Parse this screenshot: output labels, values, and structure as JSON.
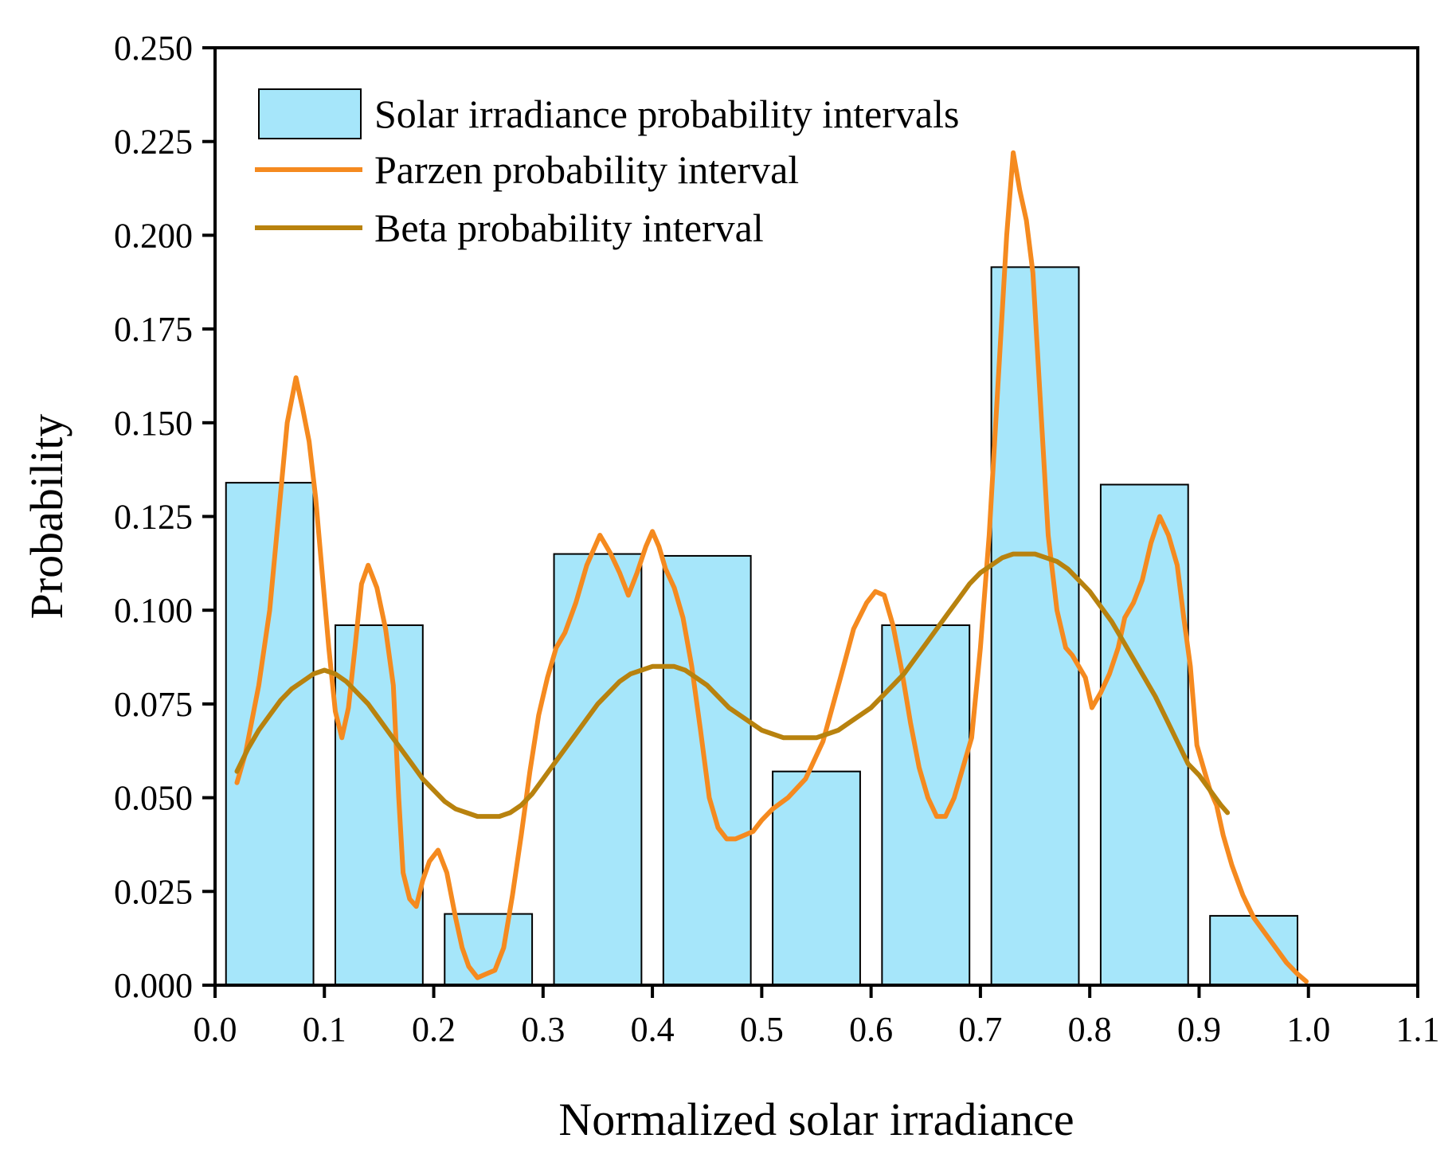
{
  "chart_data": {
    "type": "bar",
    "title": "",
    "xlabel": "Normalized solar irradiance",
    "ylabel": "Probability",
    "xlim": [
      0.0,
      1.1
    ],
    "ylim": [
      0.0,
      0.25
    ],
    "x_ticks": [
      "0.0",
      "0.1",
      "0.2",
      "0.3",
      "0.4",
      "0.5",
      "0.6",
      "0.7",
      "0.8",
      "0.9",
      "1.0",
      "1.1"
    ],
    "y_ticks": [
      "0.000",
      "0.025",
      "0.050",
      "0.075",
      "0.100",
      "0.125",
      "0.150",
      "0.175",
      "0.200",
      "0.225",
      "0.250"
    ],
    "grid": false,
    "legend_position": "top-left",
    "bars": {
      "name": "Solar irradiance probability intervals",
      "color": "#a6e6fa",
      "x_start": [
        0.01,
        0.11,
        0.21,
        0.31,
        0.41,
        0.51,
        0.61,
        0.71,
        0.81,
        0.91
      ],
      "x_end": [
        0.09,
        0.19,
        0.29,
        0.39,
        0.49,
        0.59,
        0.69,
        0.79,
        0.89,
        0.99
      ],
      "values": [
        0.134,
        0.096,
        0.019,
        0.115,
        0.1145,
        0.057,
        0.096,
        0.1915,
        0.1335,
        0.0185
      ]
    },
    "series": [
      {
        "name": "Parzen probability interval",
        "type": "line",
        "color": "#f58a1f",
        "x": [
          0.02,
          0.028,
          0.04,
          0.05,
          0.058,
          0.066,
          0.074,
          0.08,
          0.086,
          0.092,
          0.098,
          0.104,
          0.11,
          0.116,
          0.122,
          0.128,
          0.134,
          0.14,
          0.148,
          0.156,
          0.163,
          0.168,
          0.172,
          0.178,
          0.184,
          0.19,
          0.196,
          0.204,
          0.212,
          0.22,
          0.226,
          0.232,
          0.24,
          0.248,
          0.256,
          0.264,
          0.272,
          0.28,
          0.288,
          0.296,
          0.304,
          0.312,
          0.32,
          0.33,
          0.34,
          0.352,
          0.362,
          0.37,
          0.378,
          0.386,
          0.394,
          0.4,
          0.406,
          0.412,
          0.42,
          0.428,
          0.436,
          0.444,
          0.452,
          0.46,
          0.468,
          0.476,
          0.484,
          0.492,
          0.5,
          0.51,
          0.524,
          0.54,
          0.556,
          0.572,
          0.584,
          0.596,
          0.604,
          0.612,
          0.62,
          0.628,
          0.636,
          0.644,
          0.652,
          0.66,
          0.668,
          0.676,
          0.684,
          0.692,
          0.7,
          0.708,
          0.716,
          0.724,
          0.73,
          0.736,
          0.742,
          0.748,
          0.754,
          0.762,
          0.77,
          0.778,
          0.784,
          0.79,
          0.796,
          0.802,
          0.81,
          0.818,
          0.826,
          0.832,
          0.84,
          0.848,
          0.856,
          0.864,
          0.872,
          0.88,
          0.886,
          0.892,
          0.898,
          0.904,
          0.91,
          0.916,
          0.922,
          0.93,
          0.94,
          0.95,
          0.96,
          0.97,
          0.98,
          0.99,
          0.998
        ],
        "y": [
          0.054,
          0.062,
          0.08,
          0.1,
          0.125,
          0.15,
          0.162,
          0.154,
          0.145,
          0.13,
          0.11,
          0.09,
          0.073,
          0.066,
          0.074,
          0.09,
          0.107,
          0.112,
          0.106,
          0.095,
          0.08,
          0.05,
          0.03,
          0.023,
          0.021,
          0.028,
          0.033,
          0.036,
          0.03,
          0.018,
          0.01,
          0.005,
          0.002,
          0.003,
          0.004,
          0.01,
          0.024,
          0.04,
          0.057,
          0.072,
          0.082,
          0.09,
          0.094,
          0.102,
          0.112,
          0.12,
          0.115,
          0.11,
          0.104,
          0.11,
          0.117,
          0.121,
          0.117,
          0.111,
          0.106,
          0.098,
          0.085,
          0.068,
          0.05,
          0.042,
          0.039,
          0.039,
          0.04,
          0.041,
          0.044,
          0.047,
          0.05,
          0.055,
          0.065,
          0.082,
          0.095,
          0.102,
          0.105,
          0.104,
          0.096,
          0.084,
          0.07,
          0.058,
          0.05,
          0.045,
          0.045,
          0.05,
          0.058,
          0.066,
          0.09,
          0.12,
          0.16,
          0.2,
          0.222,
          0.212,
          0.204,
          0.19,
          0.16,
          0.12,
          0.1,
          0.09,
          0.088,
          0.085,
          0.082,
          0.074,
          0.078,
          0.083,
          0.09,
          0.098,
          0.102,
          0.108,
          0.118,
          0.125,
          0.12,
          0.112,
          0.098,
          0.085,
          0.064,
          0.058,
          0.052,
          0.048,
          0.04,
          0.032,
          0.024,
          0.018,
          0.014,
          0.01,
          0.006,
          0.003,
          0.001
        ]
      },
      {
        "name": "Beta probability interval",
        "type": "line",
        "color": "#b8820e",
        "x": [
          0.02,
          0.03,
          0.04,
          0.05,
          0.06,
          0.07,
          0.08,
          0.09,
          0.1,
          0.11,
          0.12,
          0.13,
          0.14,
          0.15,
          0.16,
          0.17,
          0.18,
          0.19,
          0.2,
          0.21,
          0.22,
          0.23,
          0.24,
          0.25,
          0.26,
          0.27,
          0.28,
          0.29,
          0.3,
          0.31,
          0.32,
          0.33,
          0.34,
          0.35,
          0.36,
          0.37,
          0.38,
          0.39,
          0.4,
          0.41,
          0.42,
          0.43,
          0.44,
          0.45,
          0.46,
          0.47,
          0.48,
          0.49,
          0.5,
          0.51,
          0.52,
          0.53,
          0.54,
          0.55,
          0.56,
          0.57,
          0.58,
          0.59,
          0.6,
          0.61,
          0.62,
          0.63,
          0.64,
          0.65,
          0.66,
          0.67,
          0.68,
          0.69,
          0.7,
          0.71,
          0.72,
          0.73,
          0.74,
          0.75,
          0.76,
          0.77,
          0.78,
          0.79,
          0.8,
          0.81,
          0.82,
          0.83,
          0.84,
          0.85,
          0.86,
          0.87,
          0.88,
          0.89,
          0.9,
          0.91,
          0.92,
          0.926
        ],
        "y": [
          0.057,
          0.063,
          0.068,
          0.072,
          0.076,
          0.079,
          0.081,
          0.083,
          0.084,
          0.083,
          0.081,
          0.078,
          0.075,
          0.071,
          0.067,
          0.063,
          0.059,
          0.055,
          0.052,
          0.049,
          0.047,
          0.046,
          0.045,
          0.045,
          0.045,
          0.046,
          0.048,
          0.051,
          0.055,
          0.059,
          0.063,
          0.067,
          0.071,
          0.075,
          0.078,
          0.081,
          0.083,
          0.084,
          0.085,
          0.085,
          0.085,
          0.084,
          0.082,
          0.08,
          0.077,
          0.074,
          0.072,
          0.07,
          0.068,
          0.067,
          0.066,
          0.066,
          0.066,
          0.066,
          0.067,
          0.068,
          0.07,
          0.072,
          0.074,
          0.077,
          0.08,
          0.083,
          0.087,
          0.091,
          0.095,
          0.099,
          0.103,
          0.107,
          0.11,
          0.112,
          0.114,
          0.115,
          0.115,
          0.115,
          0.114,
          0.113,
          0.111,
          0.108,
          0.105,
          0.101,
          0.097,
          0.092,
          0.087,
          0.082,
          0.077,
          0.071,
          0.065,
          0.059,
          0.056,
          0.052,
          0.048,
          0.046
        ]
      }
    ]
  }
}
